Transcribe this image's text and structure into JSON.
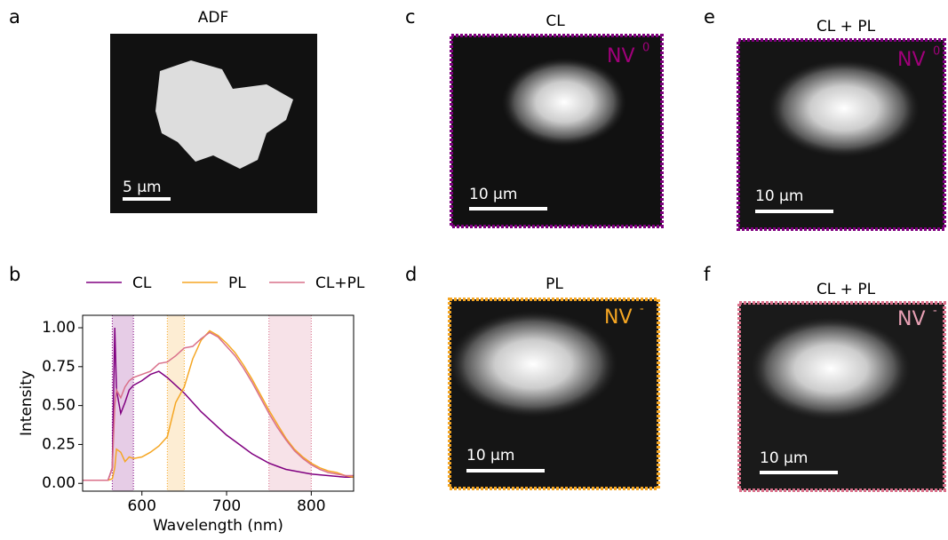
{
  "panels": {
    "a": {
      "letter": "a",
      "title": "ADF",
      "scale_bar": "5 µm"
    },
    "c": {
      "letter": "c",
      "title": "CL",
      "label": "NV",
      "label_sup": "0",
      "scale_bar": "10 µm"
    },
    "d": {
      "letter": "d",
      "title": "PL",
      "label": "NV",
      "label_sup": "-",
      "scale_bar": "10 µm"
    },
    "e": {
      "letter": "e",
      "title": "CL + PL",
      "label": "NV",
      "label_sup": "0",
      "scale_bar": "10 µm"
    },
    "f": {
      "letter": "f",
      "title": "CL + PL",
      "label": "NV",
      "label_sup": "-",
      "scale_bar": "10 µm"
    }
  },
  "chart_data": {
    "type": "line",
    "panel_label": "b",
    "xlabel": "Wavelength (nm)",
    "ylabel": "Intensity",
    "x": [
      530,
      540,
      550,
      560,
      565,
      568,
      570,
      575,
      580,
      585,
      590,
      600,
      610,
      620,
      630,
      640,
      650,
      660,
      670,
      680,
      690,
      700,
      710,
      720,
      730,
      740,
      750,
      760,
      770,
      780,
      790,
      800,
      810,
      820,
      830,
      840,
      850
    ],
    "series": [
      {
        "name": "CL",
        "color": "#800080",
        "values": [
          0.02,
          0.02,
          0.02,
          0.02,
          0.1,
          1.0,
          0.6,
          0.45,
          0.52,
          0.6,
          0.63,
          0.66,
          0.7,
          0.72,
          0.68,
          0.63,
          0.58,
          0.52,
          0.46,
          0.41,
          0.36,
          0.31,
          0.27,
          0.23,
          0.19,
          0.16,
          0.13,
          0.11,
          0.09,
          0.08,
          0.07,
          0.06,
          0.055,
          0.05,
          0.045,
          0.04,
          0.04
        ]
      },
      {
        "name": "PL",
        "color": "#f5a623",
        "values": [
          0.02,
          0.02,
          0.02,
          0.02,
          0.03,
          0.1,
          0.22,
          0.2,
          0.14,
          0.17,
          0.16,
          0.17,
          0.2,
          0.24,
          0.3,
          0.52,
          0.62,
          0.8,
          0.92,
          0.98,
          0.95,
          0.9,
          0.84,
          0.76,
          0.67,
          0.57,
          0.47,
          0.38,
          0.29,
          0.22,
          0.17,
          0.13,
          0.1,
          0.08,
          0.07,
          0.05,
          0.04
        ]
      },
      {
        "name": "CL+PL",
        "color": "#d9708a",
        "values": [
          0.02,
          0.02,
          0.02,
          0.02,
          0.1,
          0.5,
          0.6,
          0.55,
          0.62,
          0.66,
          0.68,
          0.7,
          0.72,
          0.77,
          0.78,
          0.82,
          0.87,
          0.88,
          0.93,
          0.97,
          0.94,
          0.88,
          0.82,
          0.74,
          0.65,
          0.55,
          0.45,
          0.36,
          0.28,
          0.21,
          0.16,
          0.12,
          0.09,
          0.07,
          0.06,
          0.05,
          0.05
        ]
      }
    ],
    "bands": [
      {
        "range": [
          565,
          590
        ],
        "color": "#800080"
      },
      {
        "range": [
          630,
          650
        ],
        "color": "#f5a623"
      },
      {
        "range": [
          750,
          800
        ],
        "color": "#d9708a"
      }
    ],
    "xlim": [
      530,
      850
    ],
    "xticks": [
      600,
      700,
      800
    ],
    "ylim": [
      -0.05,
      1.08
    ],
    "yticks": [
      {
        "value": 0,
        "label": "0.00"
      },
      {
        "value": 0.25,
        "label": "0.25"
      },
      {
        "value": 0.5,
        "label": "0.50"
      },
      {
        "value": 0.75,
        "label": "0.75"
      },
      {
        "value": 1,
        "label": "1.00"
      }
    ],
    "legend": "top"
  }
}
